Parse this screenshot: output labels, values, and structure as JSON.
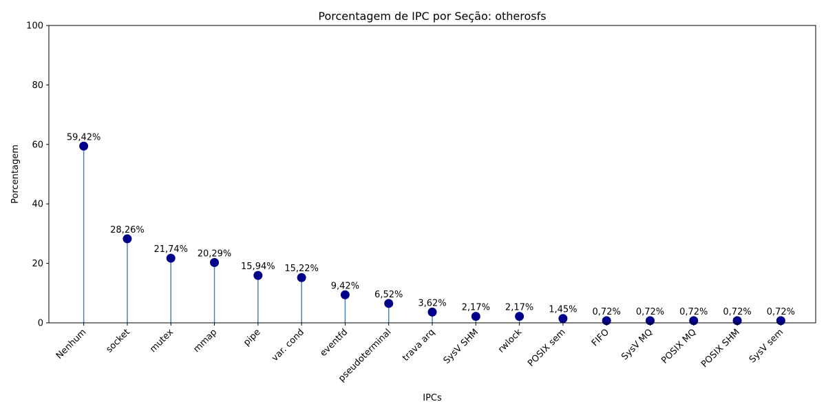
{
  "chart_data": {
    "type": "lollipop",
    "title": "Porcentagem de IPC por Seção: otherosfs",
    "xlabel": "IPCs",
    "ylabel": "Porcentagem",
    "ylim": [
      0,
      100
    ],
    "yticks": [
      0,
      20,
      40,
      60,
      80,
      100
    ],
    "grid": false,
    "categories": [
      "Nenhum",
      "socket",
      "mutex",
      "mmap",
      "pipe",
      "var. cond",
      "eventfd",
      "pseudoterminal",
      "trava arq",
      "SysV SHM",
      "rwlock",
      "POSIX sem",
      "FIFO",
      "SysV MQ",
      "POSIX MQ",
      "POSIX SHM",
      "SysV sem"
    ],
    "values": [
      59.42,
      28.26,
      21.74,
      20.29,
      15.94,
      15.22,
      9.42,
      6.52,
      3.62,
      2.17,
      2.17,
      1.45,
      0.72,
      0.72,
      0.72,
      0.72,
      0.72
    ],
    "value_labels": [
      "59,42%",
      "28,26%",
      "21,74%",
      "20,29%",
      "15,94%",
      "15,22%",
      "9,42%",
      "6,52%",
      "3,62%",
      "2,17%",
      "2,17%",
      "1,45%",
      "0,72%",
      "0,72%",
      "0,72%",
      "0,72%",
      "0,72%"
    ],
    "colors": {
      "marker": "#00008b",
      "stem": "#4682b4",
      "axis": "#000000"
    }
  }
}
